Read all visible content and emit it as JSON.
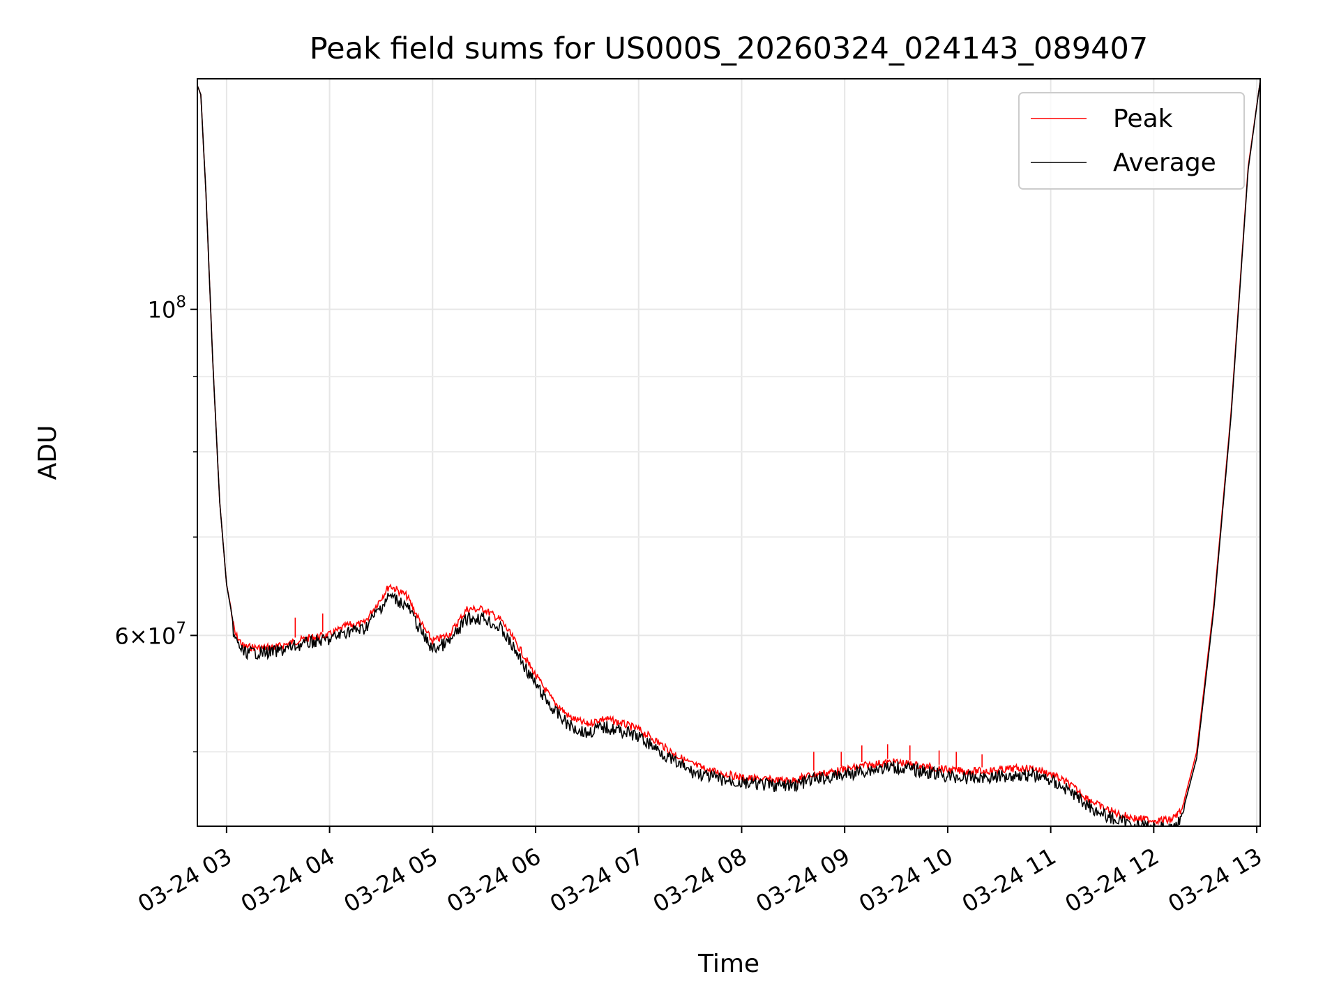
{
  "chart_data": {
    "type": "line",
    "title": "Peak field sums for US000S_20260324_024143_089407",
    "xlabel": "Time",
    "ylabel": "ADU",
    "x_unit": "hours",
    "xlim": [
      "03-24 02:43",
      "03-24 13:02"
    ],
    "ylim": [
      44500000,
      143500000
    ],
    "y_scale": "log",
    "grid": true,
    "legend_position": "top-right",
    "x_ticks": [
      "03-24 03",
      "03-24 04",
      "03-24 05",
      "03-24 06",
      "03-24 07",
      "03-24 08",
      "03-24 09",
      "03-24 10",
      "03-24 11",
      "03-24 12",
      "03-24 13"
    ],
    "y_major_ticks": [
      {
        "value": 100000000,
        "label": "10^8"
      },
      {
        "value": 60000000,
        "label": "6×10^7"
      }
    ],
    "y_minor_ticks": [
      50000000,
      70000000,
      80000000,
      90000000
    ],
    "colors": {
      "peak": "#ff0000",
      "average": "#000000"
    },
    "series": [
      {
        "name": "Peak",
        "color": "#ff0000",
        "points": [
          [
            "03-24 02:43",
            142000000
          ],
          [
            "03-24 02:45",
            140000000
          ],
          [
            "03-24 02:48",
            120000000
          ],
          [
            "03-24 02:52",
            92000000
          ],
          [
            "03-24 02:56",
            74000000
          ],
          [
            "03-24 03:00",
            65000000
          ],
          [
            "03-24 03:05",
            60500000
          ],
          [
            "03-24 03:10",
            59300000
          ],
          [
            "03-24 03:20",
            59200000
          ],
          [
            "03-24 03:30",
            59300000
          ],
          [
            "03-24 03:40",
            59800000
          ],
          [
            "03-24 03:50",
            60200000
          ],
          [
            "03-24 04:00",
            60400000
          ],
          [
            "03-24 04:10",
            61300000
          ],
          [
            "03-24 04:20",
            61500000
          ],
          [
            "03-24 04:30",
            64000000
          ],
          [
            "03-24 04:35",
            65300000
          ],
          [
            "03-24 04:45",
            64200000
          ],
          [
            "03-24 04:55",
            61000000
          ],
          [
            "03-24 05:00",
            59800000
          ],
          [
            "03-24 05:10",
            60500000
          ],
          [
            "03-24 05:20",
            62900000
          ],
          [
            "03-24 05:30",
            62900000
          ],
          [
            "03-24 05:40",
            61800000
          ],
          [
            "03-24 05:50",
            59300000
          ],
          [
            "03-24 06:00",
            56700000
          ],
          [
            "03-24 06:10",
            54500000
          ],
          [
            "03-24 06:20",
            53100000
          ],
          [
            "03-24 06:30",
            52500000
          ],
          [
            "03-24 06:35",
            52800000
          ],
          [
            "03-24 06:40",
            53000000
          ],
          [
            "03-24 06:50",
            52600000
          ],
          [
            "03-24 07:00",
            52100000
          ],
          [
            "03-24 07:10",
            51200000
          ],
          [
            "03-24 07:20",
            50200000
          ],
          [
            "03-24 07:30",
            49400000
          ],
          [
            "03-24 07:40",
            48900000
          ],
          [
            "03-24 07:50",
            48600000
          ],
          [
            "03-24 08:00",
            48300000
          ],
          [
            "03-24 08:10",
            48200000
          ],
          [
            "03-24 08:20",
            48100000
          ],
          [
            "03-24 08:30",
            48100000
          ],
          [
            "03-24 08:40",
            48500000
          ],
          [
            "03-24 08:50",
            48700000
          ],
          [
            "03-24 09:00",
            48900000
          ],
          [
            "03-24 09:10",
            49200000
          ],
          [
            "03-24 09:20",
            49400000
          ],
          [
            "03-24 09:30",
            49500000
          ],
          [
            "03-24 09:40",
            49300000
          ],
          [
            "03-24 09:50",
            49100000
          ],
          [
            "03-24 10:00",
            48900000
          ],
          [
            "03-24 10:10",
            48800000
          ],
          [
            "03-24 10:20",
            48800000
          ],
          [
            "03-24 10:30",
            48900000
          ],
          [
            "03-24 10:40",
            49000000
          ],
          [
            "03-24 10:50",
            49000000
          ],
          [
            "03-24 11:00",
            48600000
          ],
          [
            "03-24 11:10",
            47900000
          ],
          [
            "03-24 11:20",
            46900000
          ],
          [
            "03-24 11:30",
            46100000
          ],
          [
            "03-24 11:40",
            45600000
          ],
          [
            "03-24 11:50",
            45300000
          ],
          [
            "03-24 12:00",
            45200000
          ],
          [
            "03-24 12:10",
            45200000
          ],
          [
            "03-24 12:17",
            46000000
          ],
          [
            "03-24 12:25",
            50000000
          ],
          [
            "03-24 12:35",
            63000000
          ],
          [
            "03-24 12:45",
            85000000
          ],
          [
            "03-24 12:55",
            125000000
          ],
          [
            "03-24 13:02",
            143000000
          ]
        ],
        "spikes": [
          [
            "03-24 03:40",
            61700000
          ],
          [
            "03-24 03:56",
            62100000
          ],
          [
            "03-24 08:42",
            50000000
          ],
          [
            "03-24 08:58",
            50000000
          ],
          [
            "03-24 09:10",
            50500000
          ],
          [
            "03-24 09:25",
            50600000
          ],
          [
            "03-24 09:38",
            50500000
          ],
          [
            "03-24 09:55",
            50100000
          ],
          [
            "03-24 10:05",
            50000000
          ],
          [
            "03-24 10:20",
            49800000
          ]
        ]
      },
      {
        "name": "Average",
        "color": "#000000",
        "points": [
          [
            "03-24 02:43",
            142000000
          ],
          [
            "03-24 02:45",
            140000000
          ],
          [
            "03-24 02:48",
            120000000
          ],
          [
            "03-24 02:52",
            92000000
          ],
          [
            "03-24 02:56",
            74000000
          ],
          [
            "03-24 03:00",
            65000000
          ],
          [
            "03-24 03:05",
            60200000
          ],
          [
            "03-24 03:10",
            59000000
          ],
          [
            "03-24 03:20",
            59000000
          ],
          [
            "03-24 03:30",
            59100000
          ],
          [
            "03-24 03:40",
            59600000
          ],
          [
            "03-24 03:50",
            60000000
          ],
          [
            "03-24 04:00",
            60200000
          ],
          [
            "03-24 04:10",
            61000000
          ],
          [
            "03-24 04:20",
            61200000
          ],
          [
            "03-24 04:30",
            63400000
          ],
          [
            "03-24 04:35",
            64500000
          ],
          [
            "03-24 04:45",
            63500000
          ],
          [
            "03-24 04:55",
            60500000
          ],
          [
            "03-24 05:00",
            59300000
          ],
          [
            "03-24 05:10",
            60000000
          ],
          [
            "03-24 05:20",
            62200000
          ],
          [
            "03-24 05:30",
            62300000
          ],
          [
            "03-24 05:40",
            61200000
          ],
          [
            "03-24 05:50",
            58700000
          ],
          [
            "03-24 06:00",
            56100000
          ],
          [
            "03-24 06:10",
            54000000
          ],
          [
            "03-24 06:20",
            52600000
          ],
          [
            "03-24 06:30",
            52000000
          ],
          [
            "03-24 06:35",
            52300000
          ],
          [
            "03-24 06:40",
            52500000
          ],
          [
            "03-24 06:50",
            52200000
          ],
          [
            "03-24 07:00",
            51700000
          ],
          [
            "03-24 07:10",
            50800000
          ],
          [
            "03-24 07:20",
            49800000
          ],
          [
            "03-24 07:30",
            49000000
          ],
          [
            "03-24 07:40",
            48600000
          ],
          [
            "03-24 07:50",
            48300000
          ],
          [
            "03-24 08:00",
            48100000
          ],
          [
            "03-24 08:10",
            48000000
          ],
          [
            "03-24 08:20",
            47900000
          ],
          [
            "03-24 08:30",
            47900000
          ],
          [
            "03-24 08:40",
            48300000
          ],
          [
            "03-24 08:50",
            48500000
          ],
          [
            "03-24 09:00",
            48700000
          ],
          [
            "03-24 09:10",
            49000000
          ],
          [
            "03-24 09:20",
            49200000
          ],
          [
            "03-24 09:30",
            49300000
          ],
          [
            "03-24 09:40",
            49100000
          ],
          [
            "03-24 09:50",
            48900000
          ],
          [
            "03-24 10:00",
            48600000
          ],
          [
            "03-24 10:10",
            48500000
          ],
          [
            "03-24 10:20",
            48500000
          ],
          [
            "03-24 10:30",
            48600000
          ],
          [
            "03-24 10:40",
            48700000
          ],
          [
            "03-24 10:50",
            48700000
          ],
          [
            "03-24 11:00",
            48300000
          ],
          [
            "03-24 11:10",
            47600000
          ],
          [
            "03-24 11:20",
            46600000
          ],
          [
            "03-24 11:30",
            45800000
          ],
          [
            "03-24 11:40",
            45300000
          ],
          [
            "03-24 11:50",
            45000000
          ],
          [
            "03-24 12:00",
            44900000
          ],
          [
            "03-24 12:10",
            44800000
          ],
          [
            "03-24 12:17",
            45600000
          ],
          [
            "03-24 12:25",
            49500000
          ],
          [
            "03-24 12:35",
            62500000
          ],
          [
            "03-24 12:45",
            84500000
          ],
          [
            "03-24 12:55",
            124500000
          ],
          [
            "03-24 13:02",
            143000000
          ]
        ]
      }
    ]
  }
}
